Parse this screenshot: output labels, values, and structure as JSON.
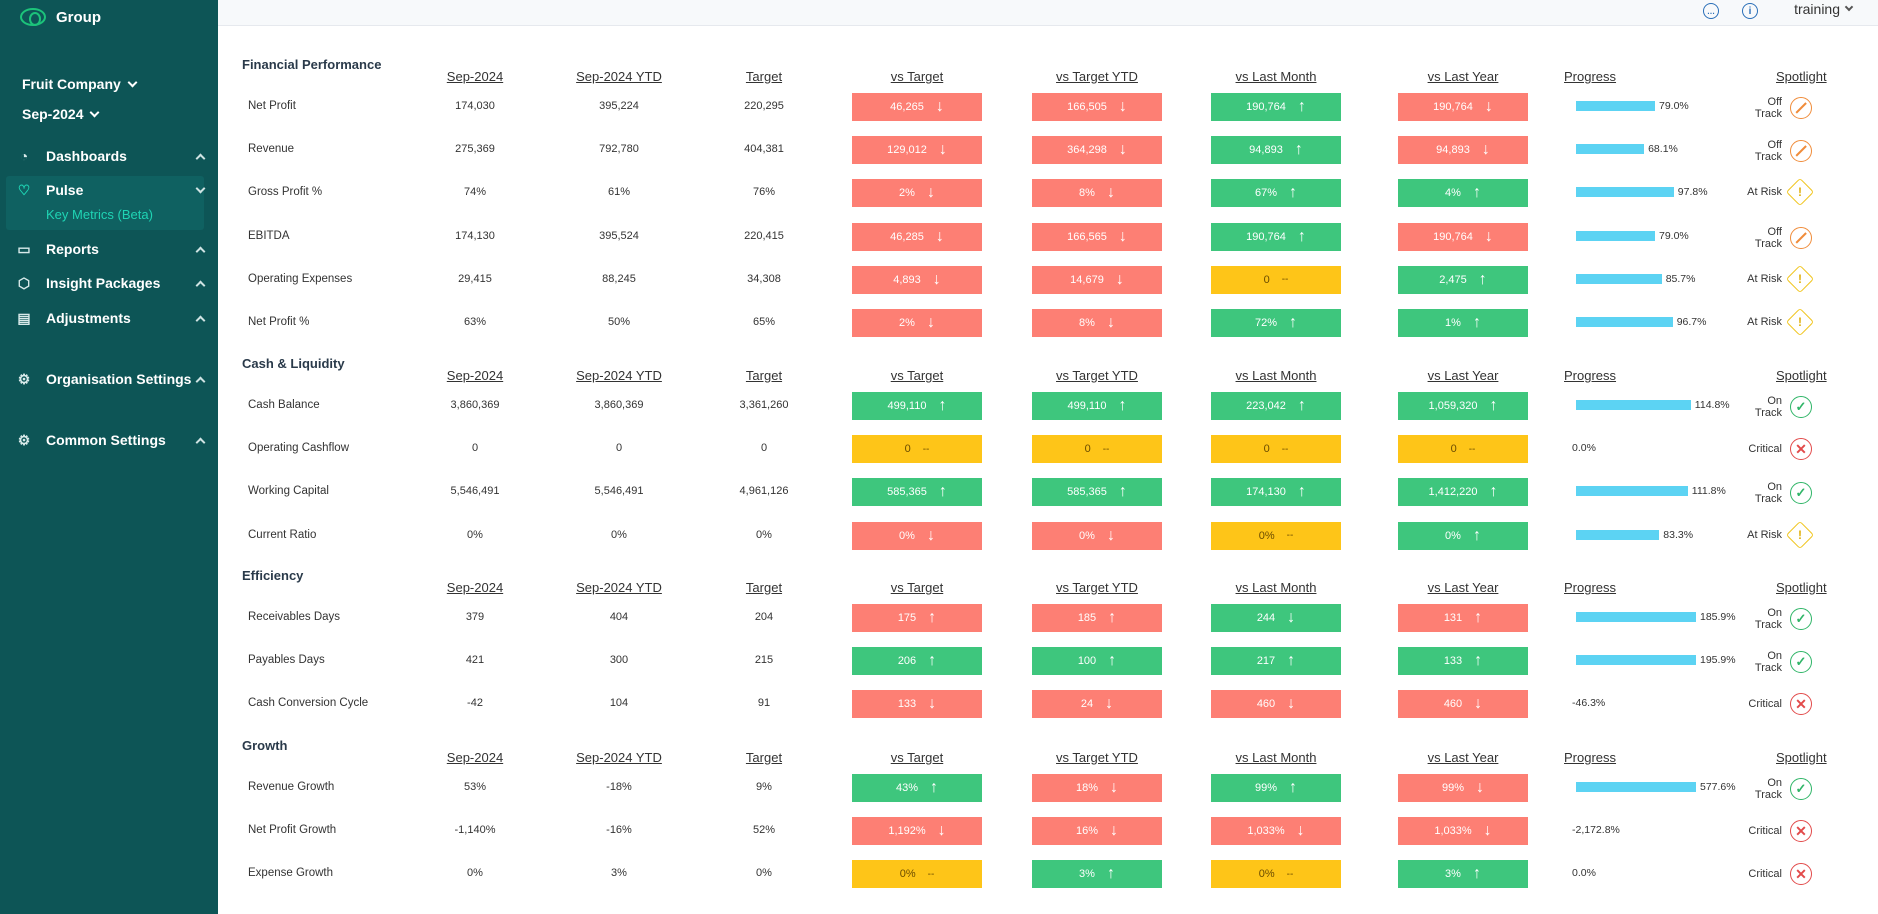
{
  "brand": {
    "name": "Group"
  },
  "sidebar": {
    "company": "Fruit Company",
    "period": "Sep-2024",
    "nav": [
      {
        "label": "Dashboards",
        "icon": "dashboard-icon"
      },
      {
        "label": "Pulse",
        "icon": "heart-pulse-icon"
      },
      {
        "label": "Reports",
        "icon": "book-icon"
      },
      {
        "label": "Insight Packages",
        "icon": "package-icon"
      },
      {
        "label": "Adjustments",
        "icon": "document-icon"
      },
      {
        "label": "Organisation Settings",
        "icon": "gear-icon"
      },
      {
        "label": "Common Settings",
        "icon": "gear-icon"
      }
    ],
    "pulse_sub": "Key Metrics (Beta)"
  },
  "topbar": {
    "user": "training"
  },
  "columns": [
    "Sep-2024",
    "Sep-2024 YTD",
    "Target",
    "vs Target",
    "vs Target YTD",
    "vs Last Month",
    "vs Last Year",
    "Progress",
    "Spotlight"
  ],
  "colors": {
    "red": "#fd7f74",
    "green": "#3ec67d",
    "yellow": "#fec518",
    "progress": "#5cd3f3",
    "sidebar": "#0d5556"
  },
  "sections": [
    {
      "title": "Financial Performance",
      "rows": [
        {
          "label": "Net Profit",
          "v": [
            "174,030",
            "395,224",
            "220,295"
          ],
          "c": [
            [
              "46,265",
              "red",
              "down"
            ],
            [
              "166,505",
              "red",
              "down"
            ],
            [
              "190,764",
              "green",
              "up"
            ],
            [
              "190,764",
              "red",
              "down"
            ]
          ],
          "progress": {
            "pct": 79.0,
            "text": "79.0%"
          },
          "spot": [
            "Off Track",
            "off"
          ]
        },
        {
          "label": "Revenue",
          "v": [
            "275,369",
            "792,780",
            "404,381"
          ],
          "c": [
            [
              "129,012",
              "red",
              "down"
            ],
            [
              "364,298",
              "red",
              "down"
            ],
            [
              "94,893",
              "green",
              "up"
            ],
            [
              "94,893",
              "red",
              "down"
            ]
          ],
          "progress": {
            "pct": 68.1,
            "text": "68.1%"
          },
          "spot": [
            "Off Track",
            "off"
          ]
        },
        {
          "label": "Gross Profit %",
          "v": [
            "74%",
            "61%",
            "76%"
          ],
          "c": [
            [
              "2%",
              "red",
              "down"
            ],
            [
              "8%",
              "red",
              "down"
            ],
            [
              "67%",
              "green",
              "up"
            ],
            [
              "4%",
              "green",
              "up"
            ]
          ],
          "progress": {
            "pct": 97.8,
            "text": "97.8%"
          },
          "spot": [
            "At Risk",
            "risk"
          ]
        },
        {
          "label": "EBITDA",
          "v": [
            "174,130",
            "395,524",
            "220,415"
          ],
          "c": [
            [
              "46,285",
              "red",
              "down"
            ],
            [
              "166,565",
              "red",
              "down"
            ],
            [
              "190,764",
              "green",
              "up"
            ],
            [
              "190,764",
              "red",
              "down"
            ]
          ],
          "progress": {
            "pct": 79.0,
            "text": "79.0%"
          },
          "spot": [
            "Off Track",
            "off"
          ]
        },
        {
          "label": "Operating Expenses",
          "v": [
            "29,415",
            "88,245",
            "34,308"
          ],
          "c": [
            [
              "4,893",
              "red",
              "down"
            ],
            [
              "14,679",
              "red",
              "down"
            ],
            [
              "0",
              "yellow",
              "flat"
            ],
            [
              "2,475",
              "green",
              "up"
            ]
          ],
          "progress": {
            "pct": 85.7,
            "text": "85.7%"
          },
          "spot": [
            "At Risk",
            "risk"
          ]
        },
        {
          "label": "Net Profit %",
          "v": [
            "63%",
            "50%",
            "65%"
          ],
          "c": [
            [
              "2%",
              "red",
              "down"
            ],
            [
              "8%",
              "red",
              "down"
            ],
            [
              "72%",
              "green",
              "up"
            ],
            [
              "1%",
              "green",
              "up"
            ]
          ],
          "progress": {
            "pct": 96.7,
            "text": "96.7%"
          },
          "spot": [
            "At Risk",
            "risk"
          ]
        }
      ]
    },
    {
      "title": "Cash & Liquidity",
      "rows": [
        {
          "label": "Cash Balance",
          "v": [
            "3,860,369",
            "3,860,369",
            "3,361,260"
          ],
          "c": [
            [
              "499,110",
              "green",
              "up"
            ],
            [
              "499,110",
              "green",
              "up"
            ],
            [
              "223,042",
              "green",
              "up"
            ],
            [
              "1,059,320",
              "green",
              "up"
            ]
          ],
          "progress": {
            "pct": 114.8,
            "text": "114.8%"
          },
          "spot": [
            "On Track",
            "ok"
          ]
        },
        {
          "label": "Operating Cashflow",
          "v": [
            "0",
            "0",
            "0"
          ],
          "c": [
            [
              "0",
              "yellow",
              "flat"
            ],
            [
              "0",
              "yellow",
              "flat"
            ],
            [
              "0",
              "yellow",
              "flat"
            ],
            [
              "0",
              "yellow",
              "flat"
            ]
          ],
          "progress": {
            "pct": 0,
            "text": "0.0%"
          },
          "spot": [
            "Critical",
            "crit"
          ]
        },
        {
          "label": "Working Capital",
          "v": [
            "5,546,491",
            "5,546,491",
            "4,961,126"
          ],
          "c": [
            [
              "585,365",
              "green",
              "up"
            ],
            [
              "585,365",
              "green",
              "up"
            ],
            [
              "174,130",
              "green",
              "up"
            ],
            [
              "1,412,220",
              "green",
              "up"
            ]
          ],
          "progress": {
            "pct": 111.8,
            "text": "111.8%"
          },
          "spot": [
            "On Track",
            "ok"
          ]
        },
        {
          "label": "Current Ratio",
          "v": [
            "0%",
            "0%",
            "0%"
          ],
          "c": [
            [
              "0%",
              "red",
              "down"
            ],
            [
              "0%",
              "red",
              "down"
            ],
            [
              "0%",
              "yellow",
              "flat"
            ],
            [
              "0%",
              "green",
              "up"
            ]
          ],
          "progress": {
            "pct": 83.3,
            "text": "83.3%"
          },
          "spot": [
            "At Risk",
            "risk"
          ]
        }
      ]
    },
    {
      "title": "Efficiency",
      "rows": [
        {
          "label": "Receivables Days",
          "v": [
            "379",
            "404",
            "204"
          ],
          "c": [
            [
              "175",
              "red",
              "up"
            ],
            [
              "185",
              "red",
              "up"
            ],
            [
              "244",
              "green",
              "down"
            ],
            [
              "131",
              "red",
              "up"
            ]
          ],
          "progress": {
            "pct": 185.9,
            "text": "185.9%"
          },
          "spot": [
            "On Track",
            "ok"
          ]
        },
        {
          "label": "Payables Days",
          "v": [
            "421",
            "300",
            "215"
          ],
          "c": [
            [
              "206",
              "green",
              "up"
            ],
            [
              "100",
              "green",
              "up"
            ],
            [
              "217",
              "green",
              "up"
            ],
            [
              "133",
              "green",
              "up"
            ]
          ],
          "progress": {
            "pct": 195.9,
            "text": "195.9%"
          },
          "spot": [
            "On Track",
            "ok"
          ]
        },
        {
          "label": "Cash Conversion Cycle",
          "v": [
            "-42",
            "104",
            "91"
          ],
          "c": [
            [
              "133",
              "red",
              "down"
            ],
            [
              "24",
              "red",
              "down"
            ],
            [
              "460",
              "red",
              "down"
            ],
            [
              "460",
              "red",
              "down"
            ]
          ],
          "progress": {
            "pct": 0,
            "text": "-46.3%"
          },
          "spot": [
            "Critical",
            "crit"
          ]
        }
      ]
    },
    {
      "title": "Growth",
      "rows": [
        {
          "label": "Revenue Growth",
          "v": [
            "53%",
            "-18%",
            "9%"
          ],
          "c": [
            [
              "43%",
              "green",
              "up"
            ],
            [
              "18%",
              "red",
              "down"
            ],
            [
              "99%",
              "green",
              "up"
            ],
            [
              "99%",
              "red",
              "down"
            ]
          ],
          "progress": {
            "pct": 577.6,
            "text": "577.6%"
          },
          "spot": [
            "On Track",
            "ok"
          ]
        },
        {
          "label": "Net Profit Growth",
          "v": [
            "-1,140%",
            "-16%",
            "52%"
          ],
          "c": [
            [
              "1,192%",
              "red",
              "down"
            ],
            [
              "16%",
              "red",
              "down"
            ],
            [
              "1,033%",
              "red",
              "down"
            ],
            [
              "1,033%",
              "red",
              "down"
            ]
          ],
          "progress": {
            "pct": 0,
            "text": "-2,172.8%"
          },
          "spot": [
            "Critical",
            "crit"
          ]
        },
        {
          "label": "Expense Growth",
          "v": [
            "0%",
            "3%",
            "0%"
          ],
          "c": [
            [
              "0%",
              "yellow",
              "flat"
            ],
            [
              "3%",
              "green",
              "up"
            ],
            [
              "0%",
              "yellow",
              "flat"
            ],
            [
              "3%",
              "green",
              "up"
            ]
          ],
          "progress": {
            "pct": 0,
            "text": "0.0%"
          },
          "spot": [
            "Critical",
            "crit"
          ]
        }
      ]
    }
  ]
}
